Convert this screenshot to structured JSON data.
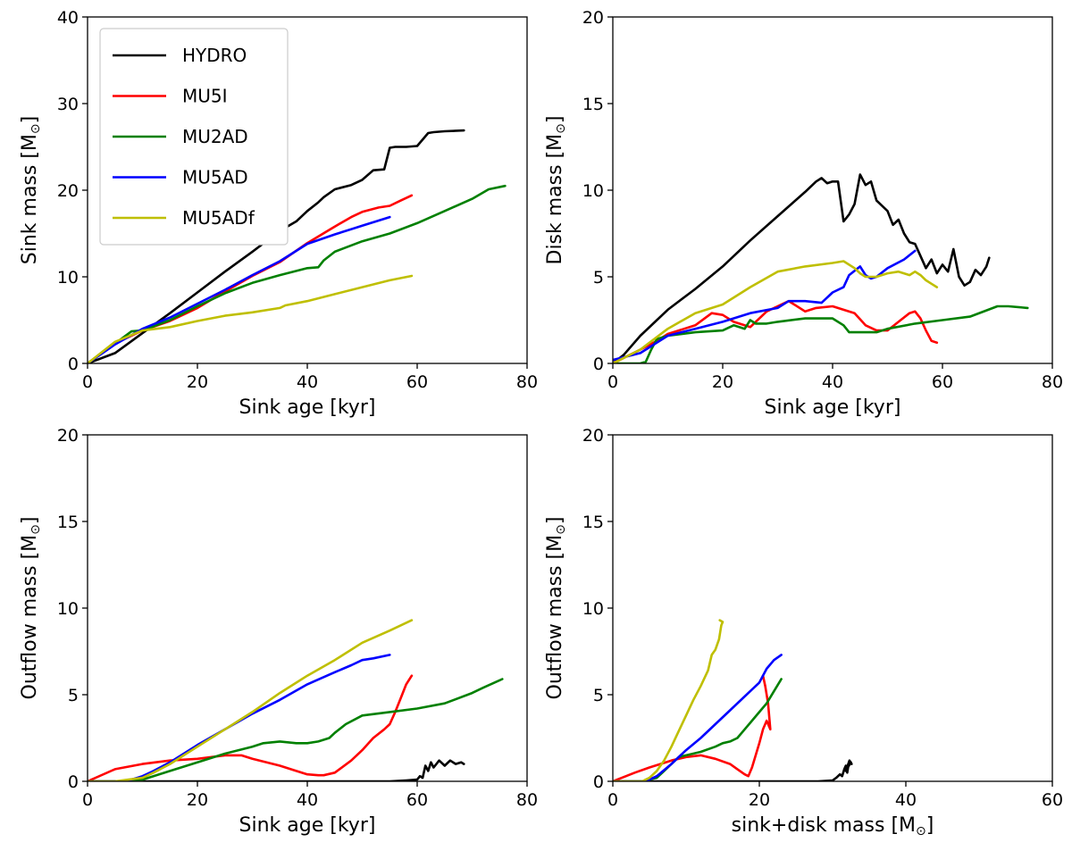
{
  "colors": {
    "HYDRO": "#000000",
    "MU5I": "#ff0000",
    "MU2AD": "#008000",
    "MU5AD": "#0000ff",
    "MU5ADf": "#bfbf00"
  },
  "legend": [
    "HYDRO",
    "MU5I",
    "MU2AD",
    "MU5AD",
    "MU5ADf"
  ],
  "chart_data": [
    {
      "id": "sink-mass",
      "type": "line",
      "title": "",
      "xlabel": "Sink age [kyr]",
      "ylabel_main": "Sink mass [M",
      "ylabel_sub": "⊙",
      "ylabel_close": "]",
      "xlim": [
        0,
        80
      ],
      "ylim": [
        0,
        40
      ],
      "xticks": [
        0,
        20,
        40,
        60,
        80
      ],
      "yticks": [
        0,
        10,
        20,
        30,
        40
      ],
      "legend_position": "top-left",
      "series": [
        {
          "name": "HYDRO",
          "x": [
            0,
            5,
            10,
            15,
            20,
            25,
            30,
            35,
            38,
            40,
            42,
            43,
            45,
            48,
            50,
            52,
            54,
            55,
            56,
            58,
            60,
            62,
            63,
            65,
            68.5
          ],
          "y": [
            0,
            1.2,
            3.5,
            5.8,
            8.2,
            10.6,
            12.9,
            15.3,
            16.4,
            17.6,
            18.6,
            19.2,
            20.1,
            20.6,
            21.2,
            22.3,
            22.4,
            24.9,
            25,
            25,
            25.1,
            26.6,
            26.7,
            26.8,
            26.9
          ]
        },
        {
          "name": "MU5I",
          "x": [
            0,
            5,
            10,
            15,
            20,
            25,
            30,
            35,
            40,
            45,
            48,
            50,
            53,
            55,
            57,
            59
          ],
          "y": [
            0,
            2.3,
            3.8,
            4.9,
            6.4,
            8.3,
            10.1,
            11.7,
            13.9,
            15.8,
            16.9,
            17.5,
            18,
            18.2,
            18.8,
            19.4
          ]
        },
        {
          "name": "MU2AD",
          "x": [
            0,
            5,
            8,
            10,
            15,
            20,
            25,
            30,
            35,
            40,
            42,
            43,
            45,
            50,
            55,
            60,
            65,
            70,
            73,
            76
          ],
          "y": [
            0,
            2.3,
            3.7,
            3.8,
            5,
            6.6,
            8.1,
            9.3,
            10.2,
            11,
            11.1,
            11.9,
            12.9,
            14.1,
            15,
            16.2,
            17.6,
            19,
            20.1,
            20.5
          ]
        },
        {
          "name": "MU5AD",
          "x": [
            0,
            5,
            10,
            15,
            20,
            25,
            30,
            35,
            40,
            45,
            50,
            55
          ],
          "y": [
            0,
            2.2,
            4,
            5.3,
            6.9,
            8.5,
            10.2,
            11.8,
            13.8,
            14.9,
            15.9,
            16.9
          ]
        },
        {
          "name": "MU5ADf",
          "x": [
            0,
            5,
            10,
            15,
            20,
            25,
            30,
            35,
            36,
            40,
            45,
            50,
            55,
            59
          ],
          "y": [
            0,
            2.5,
            3.8,
            4.2,
            4.9,
            5.5,
            5.9,
            6.4,
            6.7,
            7.2,
            8.0,
            8.8,
            9.6,
            10.1
          ]
        }
      ]
    },
    {
      "id": "disk-mass",
      "type": "line",
      "title": "",
      "xlabel": "Sink age [kyr]",
      "ylabel_main": "Disk mass [M",
      "ylabel_sub": "⊙",
      "ylabel_close": "]",
      "xlim": [
        0,
        80
      ],
      "ylim": [
        0,
        20
      ],
      "xticks": [
        0,
        20,
        40,
        60,
        80
      ],
      "yticks": [
        0,
        5,
        10,
        15,
        20
      ],
      "series": [
        {
          "name": "HYDRO",
          "x": [
            0,
            2,
            5,
            10,
            15,
            20,
            25,
            30,
            35,
            37,
            38,
            39,
            40,
            41,
            42,
            43,
            44,
            45,
            46,
            47,
            48,
            50,
            51,
            52,
            53,
            54,
            55,
            56,
            57,
            58,
            59,
            60,
            61,
            62,
            63,
            64,
            65,
            66,
            67,
            68,
            68.5
          ],
          "y": [
            0,
            0.5,
            1.6,
            3.1,
            4.3,
            5.6,
            7.1,
            8.5,
            9.9,
            10.5,
            10.7,
            10.4,
            10.5,
            10.5,
            8.2,
            8.6,
            9.2,
            10.9,
            10.3,
            10.5,
            9.4,
            8.8,
            8.0,
            8.3,
            7.5,
            7.0,
            6.9,
            6.2,
            5.5,
            6.0,
            5.2,
            5.7,
            5.3,
            6.6,
            5.0,
            4.5,
            4.7,
            5.4,
            5.1,
            5.6,
            6.1
          ]
        },
        {
          "name": "MU5I",
          "x": [
            0,
            5,
            8,
            10,
            15,
            18,
            20,
            22,
            25,
            28,
            30,
            32,
            33,
            35,
            37,
            40,
            42,
            44,
            46,
            48,
            50,
            52,
            54,
            55,
            56,
            57,
            58,
            59
          ],
          "y": [
            0,
            0.8,
            1.3,
            1.7,
            2.2,
            2.9,
            2.8,
            2.4,
            2.1,
            3.0,
            3.3,
            3.6,
            3.4,
            3.0,
            3.2,
            3.3,
            3.1,
            2.9,
            2.2,
            1.9,
            1.9,
            2.4,
            2.9,
            3.0,
            2.6,
            1.9,
            1.3,
            1.2
          ]
        },
        {
          "name": "MU2AD",
          "x": [
            0,
            5,
            6,
            7,
            8,
            10,
            15,
            20,
            22,
            24,
            25,
            26,
            28,
            30,
            35,
            40,
            42,
            43,
            45,
            48,
            50,
            55,
            60,
            65,
            70,
            72,
            75.5
          ],
          "y": [
            0,
            0,
            0.1,
            0.8,
            1.4,
            1.6,
            1.8,
            1.9,
            2.2,
            2.0,
            2.5,
            2.3,
            2.3,
            2.4,
            2.6,
            2.6,
            2.2,
            1.8,
            1.8,
            1.8,
            2.0,
            2.3,
            2.5,
            2.7,
            3.3,
            3.3,
            3.2
          ]
        },
        {
          "name": "MU5AD",
          "x": [
            0,
            5,
            10,
            15,
            20,
            25,
            30,
            32,
            35,
            38,
            40,
            42,
            43,
            45,
            46,
            47,
            48,
            50,
            53,
            55
          ],
          "y": [
            0.2,
            0.6,
            1.6,
            2.0,
            2.4,
            2.9,
            3.2,
            3.6,
            3.6,
            3.5,
            4.1,
            4.4,
            5.1,
            5.6,
            5.1,
            4.9,
            5.0,
            5.5,
            6.0,
            6.5
          ]
        },
        {
          "name": "MU5ADf",
          "x": [
            0,
            5,
            10,
            15,
            20,
            25,
            30,
            35,
            40,
            42,
            44,
            45,
            46,
            48,
            50,
            52,
            54,
            55,
            56,
            57,
            58,
            59
          ],
          "y": [
            0,
            0.8,
            2.0,
            2.9,
            3.4,
            4.4,
            5.3,
            5.6,
            5.8,
            5.9,
            5.5,
            5.2,
            5.0,
            5.0,
            5.2,
            5.3,
            5.1,
            5.3,
            5.1,
            4.8,
            4.6,
            4.4
          ]
        }
      ]
    },
    {
      "id": "outflow-mass-age",
      "type": "line",
      "title": "",
      "xlabel": "Sink age [kyr]",
      "ylabel_main": "Outflow mass [M",
      "ylabel_sub": "⊙",
      "ylabel_close": "]",
      "xlim": [
        0,
        80
      ],
      "ylim": [
        0,
        20
      ],
      "xticks": [
        0,
        20,
        40,
        60,
        80
      ],
      "yticks": [
        0,
        5,
        10,
        15,
        20
      ],
      "series": [
        {
          "name": "HYDRO",
          "x": [
            0,
            20,
            40,
            50,
            55,
            58,
            60,
            60.5,
            61,
            61.5,
            62,
            62.5,
            63,
            64,
            65,
            66,
            67,
            68,
            68.5
          ],
          "y": [
            0,
            0,
            0,
            0,
            0,
            0.05,
            0.1,
            0.3,
            0.2,
            0.9,
            0.6,
            1.1,
            0.8,
            1.2,
            0.9,
            1.2,
            1.0,
            1.1,
            1.0
          ]
        },
        {
          "name": "MU5I",
          "x": [
            0,
            5,
            10,
            15,
            20,
            25,
            28,
            30,
            35,
            38,
            40,
            42,
            43,
            45,
            48,
            50,
            52,
            54,
            55,
            56,
            57,
            58,
            59
          ],
          "y": [
            0,
            0.7,
            1.0,
            1.2,
            1.3,
            1.5,
            1.5,
            1.3,
            0.9,
            0.6,
            0.4,
            0.35,
            0.35,
            0.5,
            1.2,
            1.8,
            2.5,
            3.0,
            3.3,
            4.0,
            4.8,
            5.6,
            6.1
          ]
        },
        {
          "name": "MU2AD",
          "x": [
            0,
            5,
            8,
            10,
            12,
            15,
            20,
            25,
            30,
            32,
            35,
            38,
            40,
            42,
            44,
            45,
            47,
            50,
            55,
            60,
            65,
            70,
            72,
            75.5
          ],
          "y": [
            0,
            0,
            0,
            0.1,
            0.3,
            0.6,
            1.1,
            1.6,
            2.0,
            2.2,
            2.3,
            2.2,
            2.2,
            2.3,
            2.5,
            2.8,
            3.3,
            3.8,
            4.0,
            4.2,
            4.5,
            5.1,
            5.4,
            5.9
          ]
        },
        {
          "name": "MU5AD",
          "x": [
            0,
            5,
            7,
            10,
            12,
            15,
            20,
            25,
            30,
            35,
            40,
            45,
            48,
            50,
            52,
            55
          ],
          "y": [
            0,
            0,
            0,
            0.3,
            0.6,
            1.1,
            2.1,
            3.0,
            3.9,
            4.7,
            5.6,
            6.3,
            6.7,
            7.0,
            7.1,
            7.3
          ]
        },
        {
          "name": "MU5ADf",
          "x": [
            0,
            5,
            10,
            12,
            15,
            20,
            25,
            30,
            35,
            40,
            45,
            50,
            55,
            59
          ],
          "y": [
            0,
            0,
            0.2,
            0.5,
            1.0,
            2.0,
            3.0,
            4.0,
            5.1,
            6.1,
            7.0,
            8.0,
            8.7,
            9.3
          ]
        }
      ]
    },
    {
      "id": "outflow-mass-total",
      "type": "line",
      "title": "",
      "xlabel_main": "sink+disk mass [M",
      "xlabel_sub": "⊙",
      "xlabel_close": "]",
      "ylabel_main": "Outflow mass [M",
      "ylabel_sub": "⊙",
      "ylabel_close": "]",
      "xlim": [
        0,
        60
      ],
      "ylim": [
        0,
        20
      ],
      "xticks": [
        0,
        20,
        40,
        60
      ],
      "yticks": [
        0,
        5,
        10,
        15,
        20
      ],
      "series": [
        {
          "name": "HYDRO",
          "x": [
            0,
            10,
            20,
            28,
            30,
            30.5,
            31,
            31.3,
            31.6,
            31.8,
            32,
            32.2,
            32.5,
            31.8,
            32.3,
            32.6
          ],
          "y": [
            0,
            0,
            0,
            0,
            0.05,
            0.2,
            0.4,
            0.3,
            0.7,
            0.9,
            0.5,
            1.0,
            1.1,
            0.6,
            1.2,
            1.0
          ]
        },
        {
          "name": "MU5I",
          "x": [
            0,
            3,
            5,
            8,
            10,
            12,
            14,
            16,
            17,
            18,
            18.5,
            19,
            19.5,
            20,
            20.5,
            21,
            21.5,
            21.2,
            20.8,
            20.5
          ],
          "y": [
            0,
            0.5,
            0.8,
            1.2,
            1.4,
            1.5,
            1.3,
            1.0,
            0.7,
            0.4,
            0.3,
            0.8,
            1.5,
            2.2,
            3.0,
            3.5,
            3.0,
            4.5,
            5.5,
            6.1
          ]
        },
        {
          "name": "MU2AD",
          "x": [
            0,
            4,
            6,
            7,
            8,
            9,
            10,
            12,
            14,
            15,
            16,
            17,
            18,
            19,
            20,
            21,
            22,
            23
          ],
          "y": [
            0,
            0,
            0.2,
            0.6,
            1.0,
            1.4,
            1.5,
            1.7,
            2.0,
            2.2,
            2.3,
            2.5,
            3.0,
            3.5,
            4.0,
            4.5,
            5.2,
            5.9
          ]
        },
        {
          "name": "MU5AD",
          "x": [
            0,
            4,
            5,
            6,
            8,
            10,
            12,
            14,
            16,
            18,
            20,
            21,
            22,
            23
          ],
          "y": [
            0,
            0,
            0.1,
            0.3,
            1.0,
            1.8,
            2.5,
            3.3,
            4.1,
            4.9,
            5.7,
            6.5,
            7.0,
            7.3
          ]
        },
        {
          "name": "MU5ADf",
          "x": [
            0,
            4,
            5,
            6,
            7,
            8,
            9,
            10,
            11,
            12,
            13,
            13.5,
            14,
            14.5,
            14.8,
            15,
            14.6
          ],
          "y": [
            0,
            0,
            0.2,
            0.6,
            1.2,
            2.0,
            2.9,
            3.8,
            4.7,
            5.5,
            6.4,
            7.3,
            7.6,
            8.2,
            9.0,
            9.2,
            9.3
          ]
        }
      ]
    }
  ]
}
